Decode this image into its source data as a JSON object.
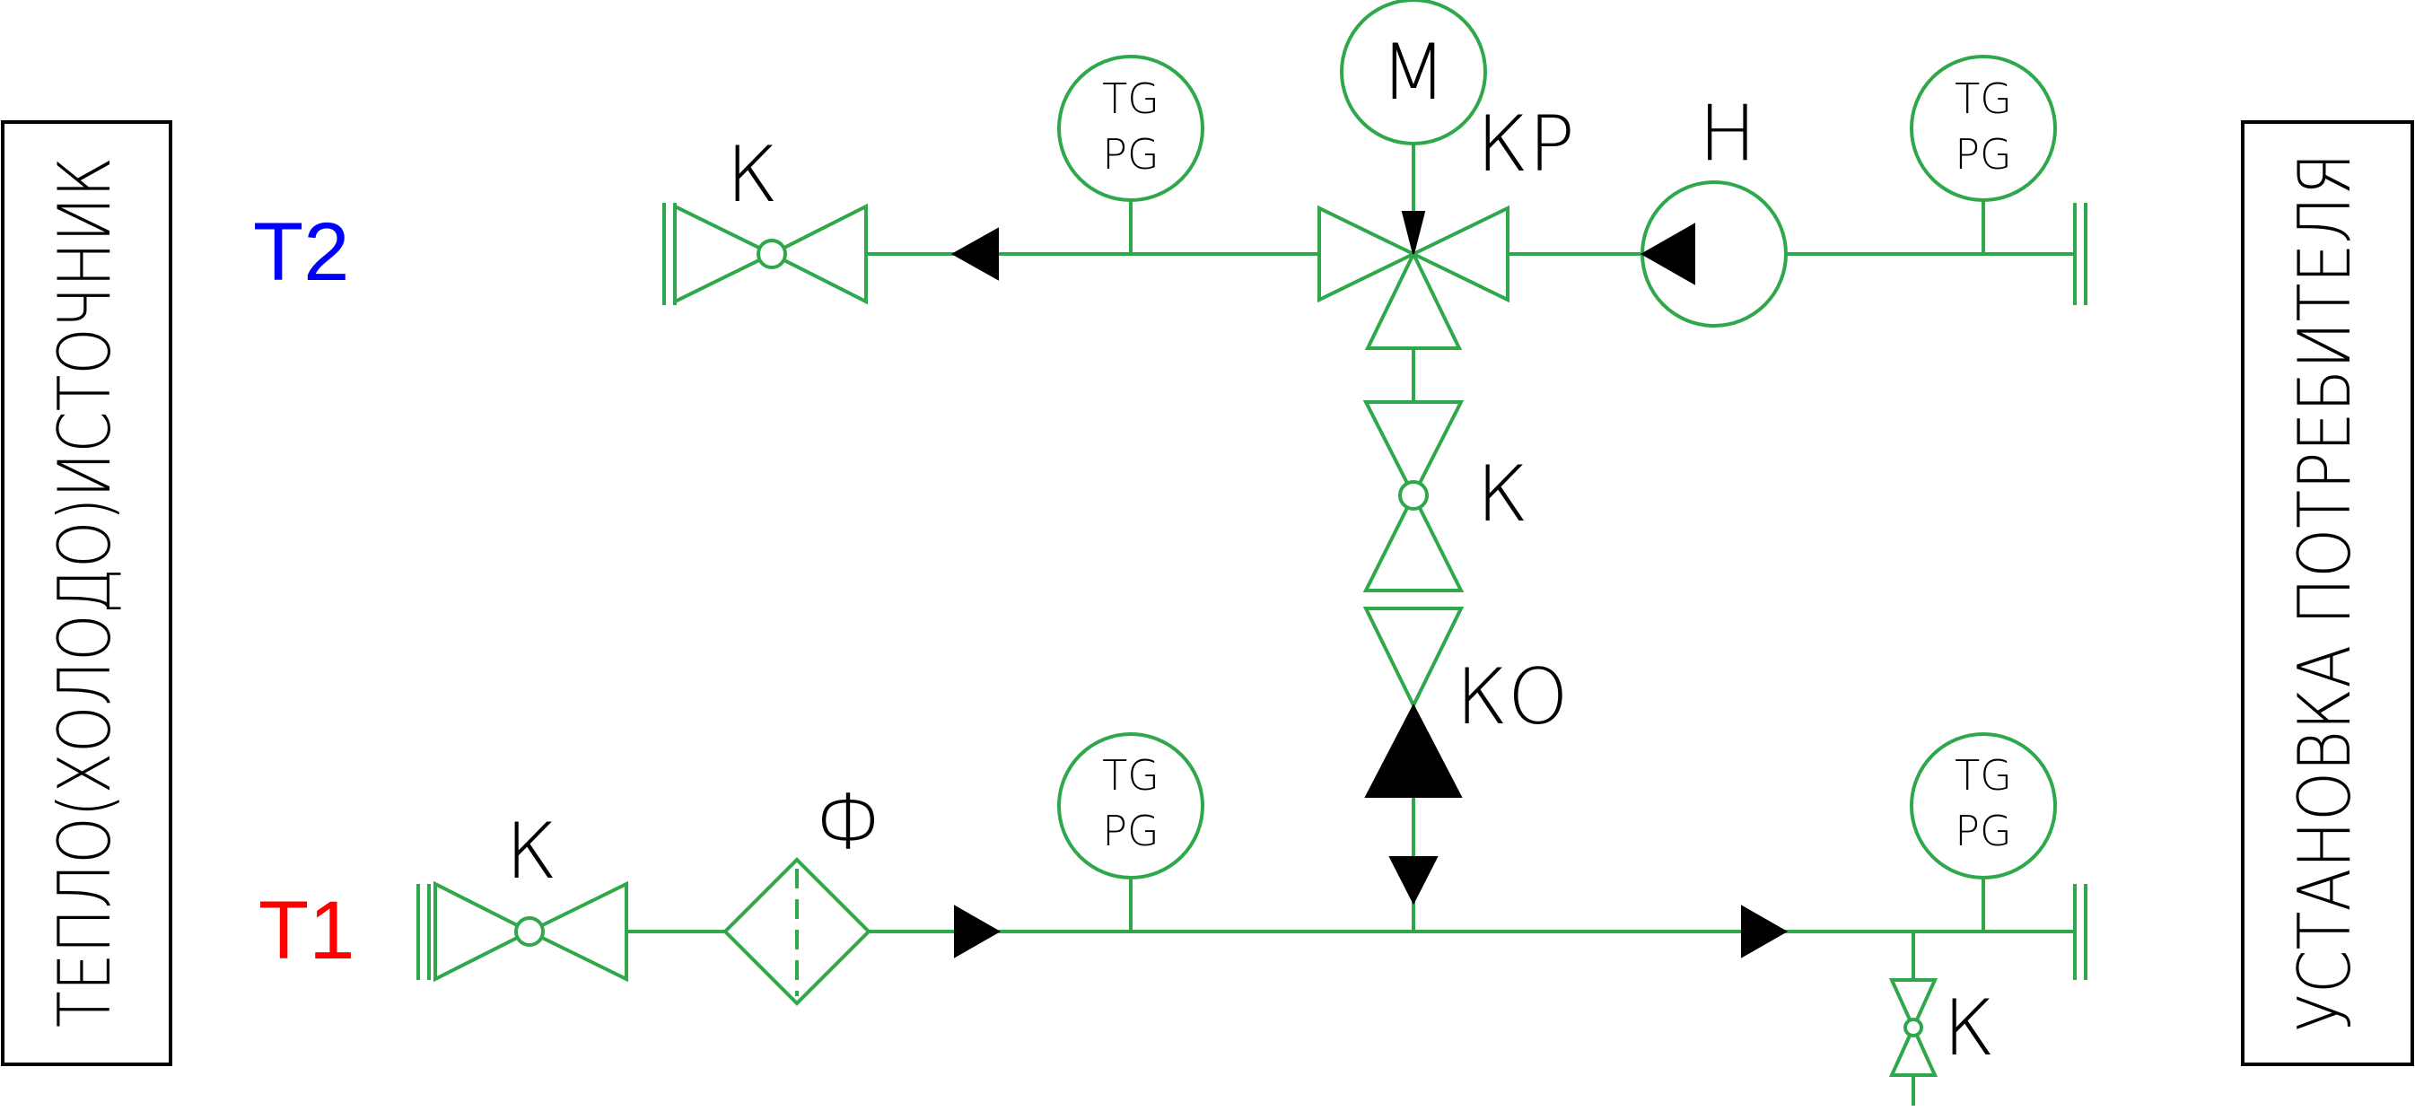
{
  "left_box": {
    "label": "ТЕПЛО(ХОЛОДО)ИСТОЧНИК"
  },
  "right_box": {
    "label": "УСТАНОВКА ПОТРЕБИТЕЛЯ"
  },
  "lines": {
    "supply": {
      "label": "T1",
      "color": "#ff0000"
    },
    "return": {
      "label": "T2",
      "color": "#0000ff"
    }
  },
  "components": {
    "valve_return_left": "К",
    "motor": "М",
    "control_valve": "КР",
    "pump": "Н",
    "valve_bypass": "К",
    "check_valve": "КО",
    "valve_supply_left": "К",
    "filter": "Ф",
    "drain_valve": "К"
  },
  "gauge": {
    "line1": "TG",
    "line2": "PG"
  }
}
